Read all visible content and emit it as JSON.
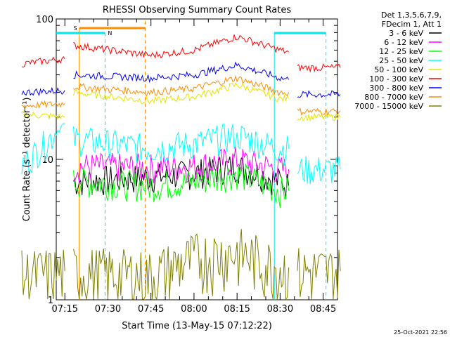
{
  "chart_data": {
    "type": "line",
    "title": "RHESSI Observing Summary Count Rates",
    "xlabel": "Start Time (13-May-15 07:12:22)",
    "ylabel": "Count Rate (s⁻¹ detector⁻¹)",
    "yscale": "log",
    "ylim": [
      1,
      100
    ],
    "xlim_minutes": [
      "07:12",
      "08:50"
    ],
    "x_ticks": [
      "07:15",
      "07:30",
      "07:45",
      "08:00",
      "08:15",
      "08:30",
      "08:45"
    ],
    "y_ticks": [
      "1",
      "10",
      "100"
    ],
    "legend_header": [
      "Det 1,3,5,6,7,9,",
      "FDecim 1, Att 1"
    ],
    "legend_placement": "right",
    "timestamp": "25-Oct-2021 22:56",
    "flags": [
      {
        "label": "S",
        "color": "#ff8c00"
      },
      {
        "label": "N",
        "color": "#00e5ee"
      }
    ],
    "series": [
      {
        "name": "3 - 6 keV",
        "color": "#000000",
        "segments": [
          [
            [
              7.3,
              7.0
            ],
            [
              7.75,
              7.5
            ],
            [
              8.0,
              8.0
            ],
            [
              8.25,
              9.0
            ],
            [
              8.5,
              7.0
            ],
            [
              8.55,
              6.5
            ]
          ]
        ]
      },
      {
        "name": "6 - 12 keV",
        "color": "#ff00ff",
        "segments": [
          [
            [
              7.3,
              9.0
            ],
            [
              7.75,
              8.8
            ],
            [
              8.0,
              9.0
            ],
            [
              8.25,
              10.0
            ],
            [
              8.5,
              8.5
            ],
            [
              8.55,
              8.5
            ]
          ]
        ]
      },
      {
        "name": "12 - 25 keV",
        "color": "#00ff00",
        "segments": [
          [
            [
              7.3,
              7.0
            ],
            [
              7.75,
              6.5
            ],
            [
              8.0,
              7.0
            ],
            [
              8.25,
              8.0
            ],
            [
              8.5,
              6.0
            ],
            [
              8.55,
              6.0
            ]
          ]
        ]
      },
      {
        "name": "25 - 50 keV",
        "color": "#00ffff",
        "segments": [
          [
            [
              7.0,
              9.0
            ],
            [
              7.25,
              18.0
            ]
          ],
          [
            [
              7.3,
              14.0
            ],
            [
              7.75,
              12.0
            ],
            [
              8.0,
              13.0
            ],
            [
              8.25,
              15.0
            ],
            [
              8.5,
              12.0
            ],
            [
              8.55,
              12.0
            ]
          ],
          [
            [
              8.6,
              8.5
            ],
            [
              8.85,
              8.5
            ]
          ]
        ]
      },
      {
        "name": "50 - 100 keV",
        "color": "#e5e500",
        "segments": [
          [
            [
              7.0,
              21.0
            ],
            [
              7.25,
              20.0
            ]
          ],
          [
            [
              7.3,
              30.0
            ],
            [
              7.75,
              26.0
            ],
            [
              8.0,
              28.0
            ],
            [
              8.25,
              34.0
            ],
            [
              8.5,
              27.0
            ],
            [
              8.55,
              27.0
            ]
          ],
          [
            [
              8.6,
              20.0
            ],
            [
              8.85,
              20.0
            ]
          ]
        ]
      },
      {
        "name": "100 - 300 keV",
        "color": "#ff0000",
        "segments": [
          [
            [
              7.0,
              48.0
            ],
            [
              7.25,
              52.0
            ]
          ],
          [
            [
              7.3,
              65.0
            ],
            [
              7.75,
              55.0
            ],
            [
              8.0,
              60.0
            ],
            [
              8.25,
              75.0
            ],
            [
              8.5,
              60.0
            ],
            [
              8.55,
              58.0
            ]
          ],
          [
            [
              8.6,
              45.0
            ],
            [
              8.85,
              45.0
            ]
          ]
        ]
      },
      {
        "name": "300 - 800 keV",
        "color": "#0000ff",
        "segments": [
          [
            [
              7.0,
              30.0
            ],
            [
              7.25,
              31.0
            ]
          ],
          [
            [
              7.3,
              40.0
            ],
            [
              7.75,
              38.0
            ],
            [
              8.0,
              40.0
            ],
            [
              8.25,
              47.0
            ],
            [
              8.5,
              38.0
            ],
            [
              8.55,
              37.0
            ]
          ],
          [
            [
              8.6,
              29.0
            ],
            [
              8.85,
              29.0
            ]
          ]
        ]
      },
      {
        "name": "800 - 7000 keV",
        "color": "#ff8c00",
        "segments": [
          [
            [
              7.0,
              24.0
            ],
            [
              7.25,
              25.0
            ]
          ],
          [
            [
              7.3,
              33.0
            ],
            [
              7.75,
              30.0
            ],
            [
              8.0,
              32.0
            ],
            [
              8.25,
              38.0
            ],
            [
              8.5,
              30.0
            ],
            [
              8.55,
              30.0
            ]
          ],
          [
            [
              8.6,
              22.0
            ],
            [
              8.85,
              22.0
            ]
          ]
        ]
      },
      {
        "name": "7000 - 15000 keV",
        "color": "#808000",
        "segments": [
          [
            [
              7.0,
              1.5
            ],
            [
              7.25,
              1.6
            ]
          ],
          [
            [
              7.3,
              1.6
            ],
            [
              7.75,
              1.5
            ],
            [
              8.0,
              2.0
            ],
            [
              8.25,
              2.2
            ],
            [
              8.5,
              1.7
            ],
            [
              8.55,
              1.7
            ]
          ],
          [
            [
              8.6,
              1.6
            ],
            [
              8.85,
              1.6
            ]
          ]
        ]
      }
    ]
  }
}
